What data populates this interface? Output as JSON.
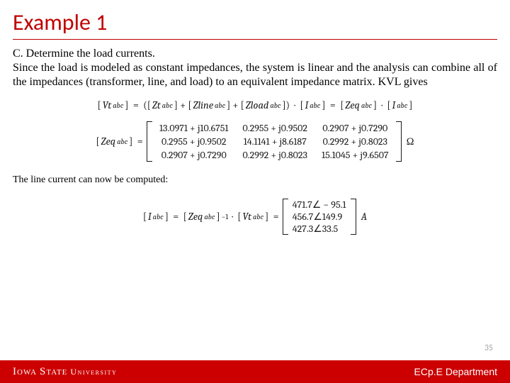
{
  "title": "Example 1",
  "para": {
    "line1": "C. Determine the load currents.",
    "line2": "Since the load is modeled as constant impedances, the system is linear and the analysis can combine all of the impedances (transformer, line, and load) to an equivalent impedance matrix. KVL gives"
  },
  "eq1": {
    "lhs_var": "Vt",
    "lhs_sub": "abc",
    "t1_var": "Zt",
    "t1_sub": "abc",
    "t2_var": "Zline",
    "t2_sub": "abc",
    "t3_var": "Zload",
    "t3_sub": "abc",
    "i_var": "I",
    "i_sub": "abc",
    "zeq_var": "Zeq",
    "zeq_sub": "abc"
  },
  "zeq_matrix": {
    "lhs_var": "Zeq",
    "lhs_sub": "abc",
    "unit": "Ω",
    "rows": [
      [
        "13.0971 + j10.6751",
        "0.2955 + j0.9502",
        "0.2907 + j0.7290"
      ],
      [
        "0.2955 + j0.9502",
        "14.1141 + j8.6187",
        "0.2992 + j0.8023"
      ],
      [
        "0.2907 + j0.7290",
        "0.2992 + j0.8023",
        "15.1045 + j9.6507"
      ]
    ]
  },
  "subtext": "The line current can now be computed:",
  "iabc": {
    "lhs_var": "I",
    "lhs_sub": "abc",
    "zeq_var": "Zeq",
    "zeq_sub": "abc",
    "vt_var": "Vt",
    "vt_sub": "abc",
    "unit": "A",
    "rows": [
      "471.7∠ − 95.1",
      "456.7∠149.9",
      "427.3∠33.5"
    ]
  },
  "page_number": "35",
  "footer": {
    "iowa": "Iowa",
    "state": "State",
    "university": "University",
    "dept": "ECp.E Department"
  }
}
